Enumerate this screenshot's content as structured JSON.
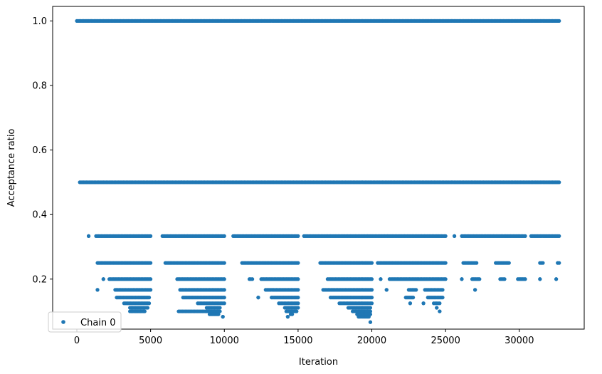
{
  "chart_data": {
    "type": "scatter",
    "title": "",
    "xlabel": "Iteration",
    "ylabel": "Acceptance ratio",
    "xlim": [
      -1640,
      34400
    ],
    "ylim": [
      0.045,
      1.045
    ],
    "xticks": [
      0,
      5000,
      10000,
      15000,
      20000,
      25000,
      30000
    ],
    "yticks": [
      0.2,
      0.4,
      0.6,
      0.8,
      1.0
    ],
    "xtick_labels": [
      "0",
      "5000",
      "10000",
      "15000",
      "20000",
      "25000",
      "30000"
    ],
    "ytick_labels": [
      "0.2",
      "0.4",
      "0.6",
      "0.8",
      "1.0"
    ],
    "grid": false,
    "legend": {
      "position": "lower-left",
      "entries": [
        "Chain 0"
      ]
    },
    "series": [
      {
        "name": "Chain 0",
        "color": "#1f77b4",
        "marker": "circle",
        "bands": [
          {
            "y": 1.0,
            "segments": [
              [
                0,
                32700
              ]
            ]
          },
          {
            "y": 0.5,
            "segments": [
              [
                200,
                32700
              ]
            ]
          },
          {
            "y": 0.3333,
            "segments": [
              [
                800,
                800
              ],
              [
                1300,
                5000
              ],
              [
                5800,
                10000
              ],
              [
                10600,
                15000
              ],
              [
                15400,
                25000
              ],
              [
                25600,
                25600
              ],
              [
                26100,
                30400
              ],
              [
                30800,
                32700
              ]
            ]
          },
          {
            "y": 0.25,
            "segments": [
              [
                1400,
                5000
              ],
              [
                6000,
                10000
              ],
              [
                11200,
                15000
              ],
              [
                16500,
                20000
              ],
              [
                20400,
                25000
              ],
              [
                26200,
                27100
              ],
              [
                28400,
                29300
              ],
              [
                31400,
                31600
              ],
              [
                32600,
                32700
              ]
            ]
          },
          {
            "y": 0.2,
            "segments": [
              [
                1800,
                1800
              ],
              [
                2200,
                5000
              ],
              [
                6800,
                10000
              ],
              [
                11700,
                11900
              ],
              [
                12500,
                15000
              ],
              [
                17000,
                20000
              ],
              [
                20600,
                20600
              ],
              [
                21200,
                25000
              ],
              [
                26100,
                26100
              ],
              [
                26800,
                27300
              ],
              [
                28700,
                29000
              ],
              [
                29900,
                30400
              ],
              [
                31400,
                31400
              ],
              [
                32500,
                32500
              ]
            ]
          },
          {
            "y": 0.1667,
            "segments": [
              [
                1400,
                1400
              ],
              [
                2600,
                5000
              ],
              [
                7000,
                10000
              ],
              [
                12800,
                15000
              ],
              [
                16700,
                20000
              ],
              [
                21000,
                21000
              ],
              [
                22500,
                23000
              ],
              [
                23600,
                24800
              ],
              [
                27000,
                27000
              ]
            ]
          },
          {
            "y": 0.1429,
            "segments": [
              [
                2700,
                4900
              ],
              [
                7200,
                10000
              ],
              [
                12300,
                12300
              ],
              [
                13200,
                15000
              ],
              [
                17200,
                20000
              ],
              [
                22300,
                22800
              ],
              [
                23800,
                24800
              ]
            ]
          },
          {
            "y": 0.125,
            "segments": [
              [
                3200,
                4900
              ],
              [
                8200,
                10000
              ],
              [
                13700,
                15000
              ],
              [
                17800,
                20000
              ],
              [
                22600,
                22600
              ],
              [
                23500,
                23500
              ],
              [
                24200,
                24600
              ]
            ]
          },
          {
            "y": 0.1111,
            "segments": [
              [
                3600,
                4800
              ],
              [
                8800,
                9700
              ],
              [
                14100,
                15000
              ],
              [
                18400,
                19900
              ],
              [
                24400,
                24400
              ]
            ]
          },
          {
            "y": 0.1,
            "segments": [
              [
                3600,
                4600
              ],
              [
                6900,
                9700
              ],
              [
                14200,
                14900
              ],
              [
                18700,
                19900
              ],
              [
                24600,
                24600
              ]
            ]
          },
          {
            "y": 0.0909,
            "segments": [
              [
                9000,
                9600
              ],
              [
                14500,
                14600
              ],
              [
                19000,
                19900
              ]
            ]
          },
          {
            "y": 0.0833,
            "segments": [
              [
                9900,
                9900
              ],
              [
                14300,
                14300
              ],
              [
                19100,
                19800
              ]
            ]
          },
          {
            "y": 0.0667,
            "segments": [
              [
                19900,
                19900
              ]
            ]
          }
        ]
      }
    ]
  }
}
